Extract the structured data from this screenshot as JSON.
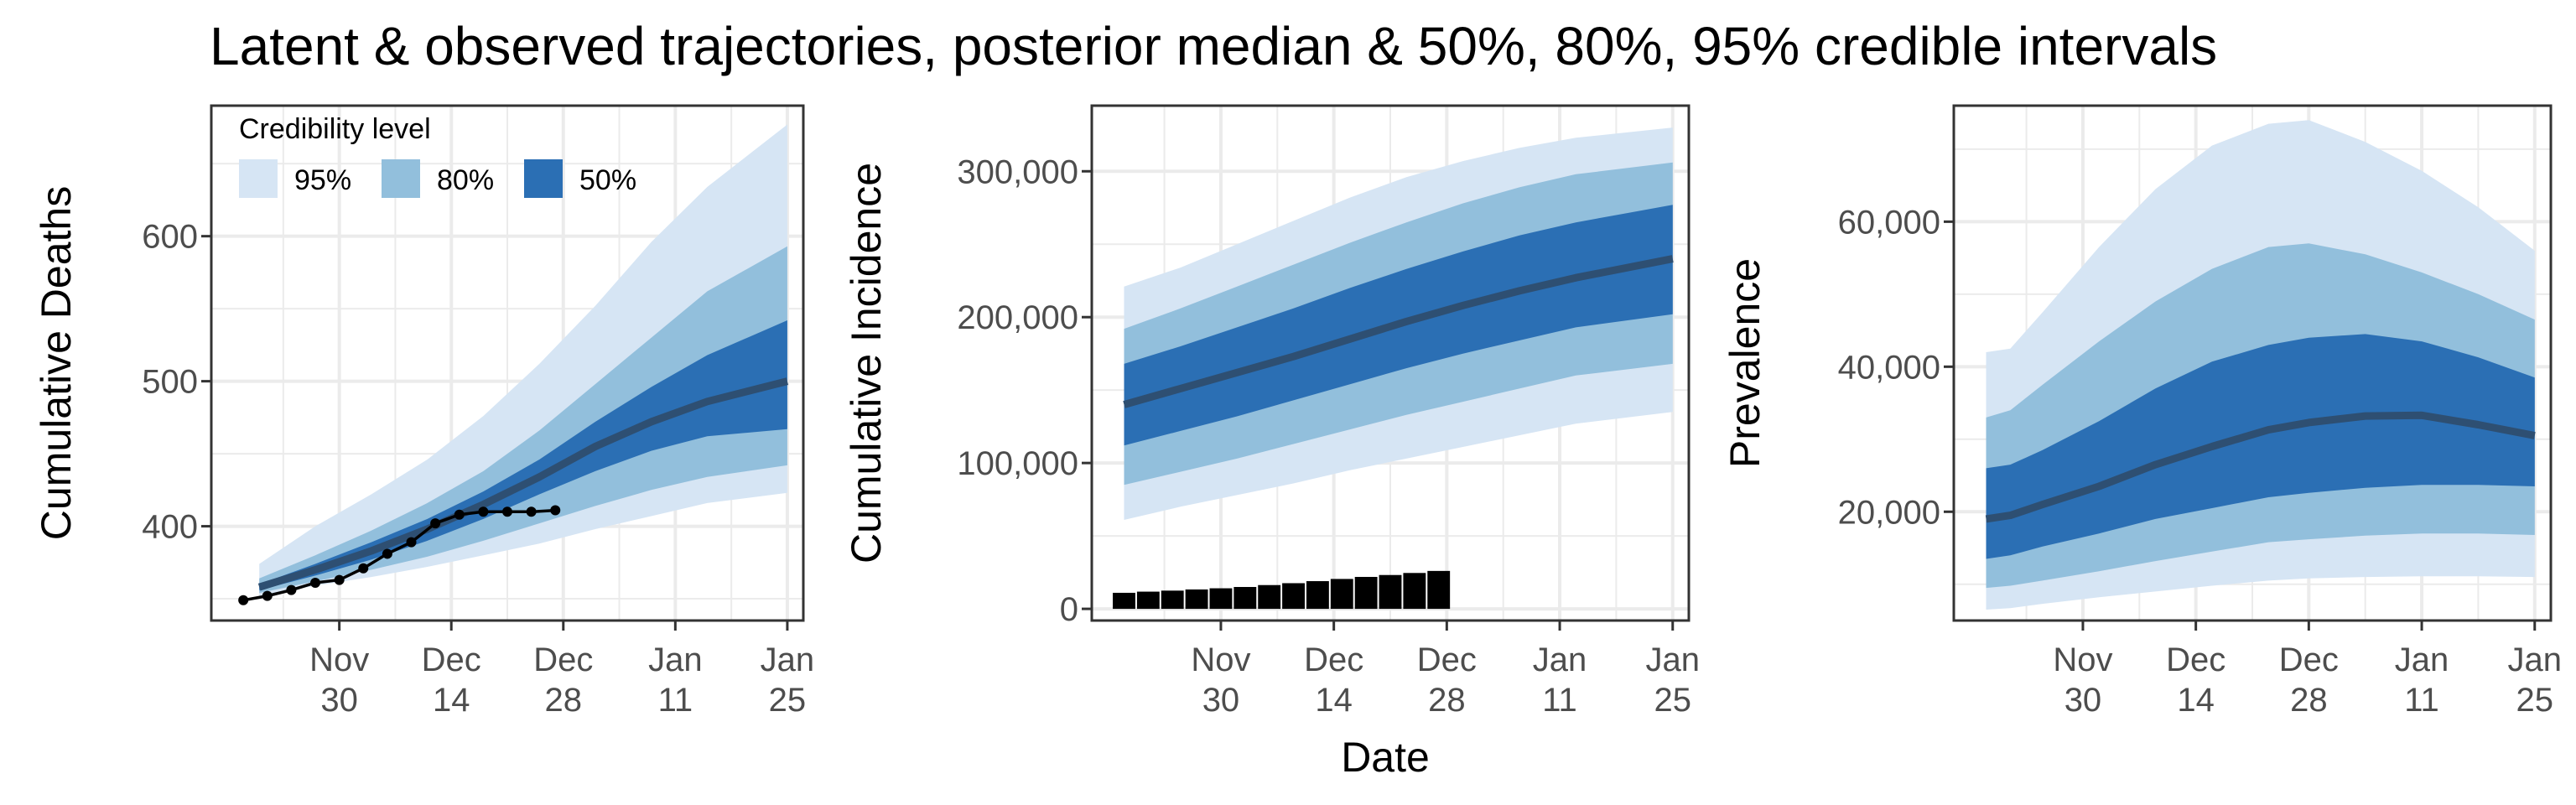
{
  "figure": {
    "title": "Latent & observed trajectories, posterior median & 50%, 80%, 95% credible intervals",
    "xlabel": "Date"
  },
  "legend": {
    "title": "Credibility level",
    "placement": "top-left",
    "items": [
      {
        "label": "95%",
        "color": "#d6e5f4"
      },
      {
        "label": "80%",
        "color": "#92bfdc"
      },
      {
        "label": "50%",
        "color": "#2b6fb4"
      }
    ]
  },
  "colors": {
    "median": "#2e4f72",
    "observed": "#000000",
    "grid": "#ebebeb",
    "panel_border": "#333333",
    "band95": "#d6e5f4",
    "band80": "#92bfdc",
    "band50": "#2b6fb4"
  },
  "x_ticks": [
    {
      "date": "2020-11-30",
      "line1": "Nov",
      "line2": "30"
    },
    {
      "date": "2020-12-14",
      "line1": "Dec",
      "line2": "14"
    },
    {
      "date": "2020-12-28",
      "line1": "Dec",
      "line2": "28"
    },
    {
      "date": "2021-01-11",
      "line1": "Jan",
      "line2": "11"
    },
    {
      "date": "2021-01-25",
      "line1": "Jan",
      "line2": "25"
    }
  ],
  "chart_data": [
    {
      "type": "area",
      "ylabel": "Cumulative Deaths",
      "xlim": [
        "2020-11-14",
        "2021-01-27"
      ],
      "ylim": [
        335,
        690
      ],
      "yticks": [
        400,
        500,
        600
      ],
      "grid": true,
      "legend": true,
      "bands": {
        "x": [
          "2020-11-20",
          "2020-11-27",
          "2020-12-04",
          "2020-12-11",
          "2020-12-18",
          "2020-12-25",
          "2021-01-01",
          "2021-01-08",
          "2021-01-15",
          "2021-01-25"
        ],
        "median": [
          358,
          370,
          383,
          398,
          415,
          434,
          455,
          472,
          486,
          500
        ],
        "lo50": [
          356,
          366,
          377,
          390,
          405,
          422,
          438,
          452,
          462,
          467
        ],
        "hi50": [
          360,
          374,
          389,
          405,
          424,
          446,
          472,
          496,
          518,
          542
        ],
        "lo80": [
          354,
          362,
          370,
          379,
          390,
          402,
          414,
          425,
          434,
          442
        ],
        "hi80": [
          364,
          380,
          397,
          416,
          438,
          466,
          498,
          530,
          562,
          593
        ],
        "lo95": [
          352,
          359,
          365,
          372,
          380,
          388,
          398,
          407,
          416,
          423
        ],
        "hi95": [
          374,
          400,
          422,
          446,
          476,
          512,
          552,
          596,
          634,
          677
        ]
      },
      "observed": {
        "x": [
          "2020-11-18",
          "2020-11-21",
          "2020-11-24",
          "2020-11-27",
          "2020-11-30",
          "2020-12-03",
          "2020-12-06",
          "2020-12-09",
          "2020-12-12",
          "2020-12-15",
          "2020-12-18",
          "2020-12-21",
          "2020-12-24",
          "2020-12-27"
        ],
        "values": [
          349,
          352,
          356,
          361,
          363,
          371,
          381,
          389,
          402,
          408,
          410,
          410,
          410,
          411
        ]
      }
    },
    {
      "type": "area",
      "ylabel": "Cumulative Incidence",
      "xlim": [
        "2020-11-14",
        "2021-01-27"
      ],
      "ylim": [
        -8000,
        345000
      ],
      "yticks": [
        0,
        100000,
        200000,
        300000
      ],
      "ytick_labels": [
        "0",
        "100,000",
        "200,000",
        "300,000"
      ],
      "grid": true,
      "bands": {
        "x": [
          "2020-11-18",
          "2020-11-25",
          "2020-12-02",
          "2020-12-09",
          "2020-12-16",
          "2020-12-23",
          "2020-12-30",
          "2021-01-06",
          "2021-01-13",
          "2021-01-25"
        ],
        "median": [
          140000,
          151000,
          162000,
          173000,
          185000,
          197000,
          208000,
          218000,
          227000,
          240000
        ],
        "lo50": [
          112000,
          122000,
          132000,
          143000,
          154000,
          165000,
          175000,
          184000,
          193000,
          202000
        ],
        "hi50": [
          168000,
          180000,
          193000,
          206000,
          220000,
          233000,
          245000,
          256000,
          265000,
          277000
        ],
        "lo80": [
          85000,
          94000,
          103000,
          113000,
          123000,
          133000,
          142000,
          151000,
          160000,
          168000
        ],
        "hi80": [
          192000,
          206000,
          221000,
          236000,
          251000,
          265000,
          278000,
          289000,
          298000,
          306000
        ],
        "lo95": [
          61000,
          70000,
          78000,
          86000,
          95000,
          103000,
          111000,
          119000,
          127000,
          135000
        ],
        "hi95": [
          221000,
          234000,
          250000,
          266000,
          282000,
          296000,
          307000,
          316000,
          323000,
          330000
        ]
      },
      "observed_bars": {
        "x": [
          "2020-11-18",
          "2020-11-21",
          "2020-11-24",
          "2020-11-27",
          "2020-11-30",
          "2020-12-03",
          "2020-12-06",
          "2020-12-09",
          "2020-12-12",
          "2020-12-15",
          "2020-12-18",
          "2020-12-21",
          "2020-12-24",
          "2020-12-27"
        ],
        "values": [
          11000,
          11800,
          12500,
          13300,
          14100,
          15000,
          16300,
          17600,
          19000,
          20500,
          21900,
          23200,
          24600,
          26000
        ]
      }
    },
    {
      "type": "area",
      "ylabel": "Prevalence",
      "xlim": [
        "2020-11-14",
        "2021-01-27"
      ],
      "ylim": [
        5000,
        76000
      ],
      "yticks": [
        20000,
        40000,
        60000
      ],
      "ytick_labels": [
        "20,000",
        "40,000",
        "60,000"
      ],
      "grid": true,
      "bands": {
        "x": [
          "2020-11-18",
          "2020-11-21",
          "2020-11-25",
          "2020-12-02",
          "2020-12-09",
          "2020-12-16",
          "2020-12-23",
          "2020-12-28",
          "2021-01-04",
          "2021-01-11",
          "2021-01-18",
          "2021-01-25"
        ],
        "median": [
          19000,
          19500,
          21000,
          23500,
          26500,
          29000,
          31300,
          32300,
          33200,
          33300,
          32000,
          30500
        ],
        "lo50": [
          13500,
          14000,
          15200,
          17000,
          19000,
          20500,
          22000,
          22600,
          23300,
          23700,
          23700,
          23500
        ],
        "hi50": [
          26000,
          26500,
          28500,
          32500,
          37000,
          40700,
          43000,
          44000,
          44500,
          43500,
          41300,
          38500
        ],
        "lo80": [
          9500,
          9800,
          10500,
          11800,
          13200,
          14500,
          15800,
          16200,
          16700,
          17000,
          17000,
          16800
        ],
        "hi80": [
          33000,
          34000,
          37500,
          43500,
          49000,
          53500,
          56500,
          57000,
          55500,
          53000,
          50000,
          46500
        ],
        "lo95": [
          6500,
          6700,
          7300,
          8200,
          9000,
          9800,
          10500,
          10800,
          11000,
          11100,
          11100,
          11000
        ],
        "hi95": [
          42000,
          42500,
          47500,
          56500,
          64500,
          70500,
          73500,
          74000,
          71000,
          67000,
          62000,
          56000
        ]
      }
    }
  ]
}
